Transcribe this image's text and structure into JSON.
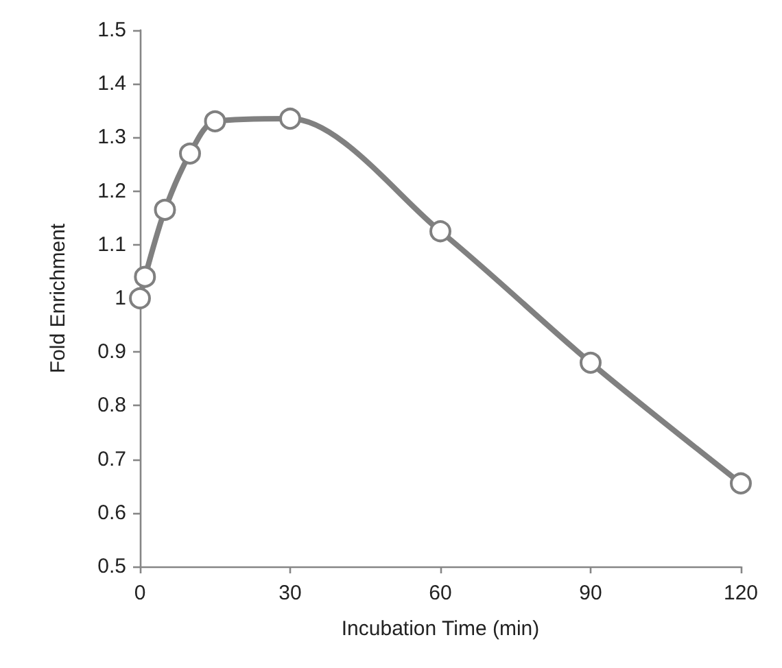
{
  "chart_data": {
    "type": "line",
    "xlabel": "Incubation Time (min)",
    "ylabel": "Fold Enrichment",
    "x": [
      0,
      1,
      5,
      10,
      15,
      30,
      60,
      90,
      120
    ],
    "series": [
      {
        "color": "#808080",
        "values": [
          1.0,
          1.04,
          1.165,
          1.27,
          1.33,
          1.335,
          1.125,
          0.88,
          0.655
        ]
      }
    ],
    "xlim": [
      0,
      120
    ],
    "xticks": [
      0,
      30,
      60,
      90,
      120
    ],
    "ylim": [
      0.5,
      1.5
    ],
    "yticks": [
      0.5,
      0.6,
      0.7,
      0.8,
      0.9,
      1,
      1.1,
      1.2,
      1.3,
      1.4,
      1.5
    ],
    "grid": false,
    "marker": "circle",
    "line_style": "solid"
  }
}
